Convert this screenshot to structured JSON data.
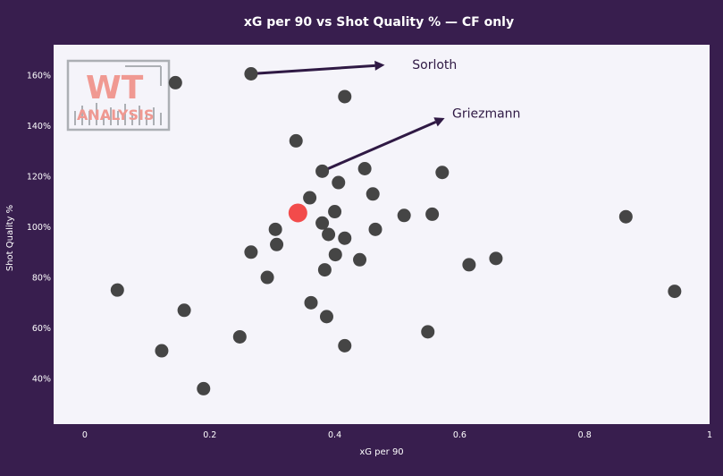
{
  "chart_data": {
    "type": "scatter",
    "title": "xG per 90 vs Shot Quality % — CF only",
    "xlabel": "xG per 90",
    "ylabel": "Shot Quality %",
    "xlim": [
      -0.05,
      1.0
    ],
    "ylim": [
      22,
      172
    ],
    "x_ticks": [
      0,
      0.2,
      0.4,
      0.6,
      0.8,
      1
    ],
    "x_tick_labels": [
      "0",
      "0.2",
      "0.4",
      "0.6",
      "0.8",
      "1"
    ],
    "y_ticks": [
      40,
      60,
      80,
      100,
      120,
      140,
      160
    ],
    "y_tick_labels": [
      "40%",
      "60%",
      "80%",
      "100%",
      "120%",
      "140%",
      "160%"
    ],
    "grid": false,
    "colors": {
      "background": "#381e4e",
      "plot_background": "#f5f4fa",
      "point": "#454545",
      "highlight": "#f24b4b",
      "arrow": "#2f1944"
    },
    "points": [
      {
        "x": 0.052,
        "y": 75
      },
      {
        "x": 0.123,
        "y": 51
      },
      {
        "x": 0.145,
        "y": 157
      },
      {
        "x": 0.159,
        "y": 67
      },
      {
        "x": 0.19,
        "y": 36
      },
      {
        "x": 0.248,
        "y": 56.5
      },
      {
        "x": 0.266,
        "y": 160.5
      },
      {
        "x": 0.266,
        "y": 90
      },
      {
        "x": 0.292,
        "y": 80
      },
      {
        "x": 0.305,
        "y": 99
      },
      {
        "x": 0.307,
        "y": 93
      },
      {
        "x": 0.338,
        "y": 134
      },
      {
        "x": 0.36,
        "y": 111.5
      },
      {
        "x": 0.362,
        "y": 70
      },
      {
        "x": 0.38,
        "y": 122
      },
      {
        "x": 0.38,
        "y": 101.5
      },
      {
        "x": 0.384,
        "y": 83
      },
      {
        "x": 0.387,
        "y": 64.5
      },
      {
        "x": 0.39,
        "y": 97
      },
      {
        "x": 0.4,
        "y": 106
      },
      {
        "x": 0.401,
        "y": 89
      },
      {
        "x": 0.406,
        "y": 117.5
      },
      {
        "x": 0.416,
        "y": 151.5
      },
      {
        "x": 0.416,
        "y": 95.5
      },
      {
        "x": 0.416,
        "y": 53
      },
      {
        "x": 0.44,
        "y": 87
      },
      {
        "x": 0.448,
        "y": 123
      },
      {
        "x": 0.461,
        "y": 113
      },
      {
        "x": 0.465,
        "y": 99
      },
      {
        "x": 0.511,
        "y": 104.5
      },
      {
        "x": 0.549,
        "y": 58.5
      },
      {
        "x": 0.556,
        "y": 105
      },
      {
        "x": 0.572,
        "y": 121.5
      },
      {
        "x": 0.615,
        "y": 85
      },
      {
        "x": 0.658,
        "y": 87.5
      },
      {
        "x": 0.866,
        "y": 104
      },
      {
        "x": 0.944,
        "y": 74.5
      }
    ],
    "highlight_points": [
      {
        "x": 0.341,
        "y": 105.5
      }
    ],
    "annotations": [
      {
        "text": "Sorloth",
        "from": {
          "x": 0.266,
          "y": 160.5
        },
        "to": {
          "x": 0.48,
          "y": 164
        },
        "text_at": {
          "x": 0.524,
          "y": 164.3
        }
      },
      {
        "text": "Griezmann",
        "from": {
          "x": 0.38,
          "y": 122
        },
        "to": {
          "x": 0.576,
          "y": 143
        },
        "text_at": {
          "x": 0.588,
          "y": 145
        }
      }
    ]
  },
  "logo": {
    "line1": "WT",
    "line2": "ANALYSIS",
    "color": "#f08a80",
    "frame_color": "#a0a4a8"
  }
}
